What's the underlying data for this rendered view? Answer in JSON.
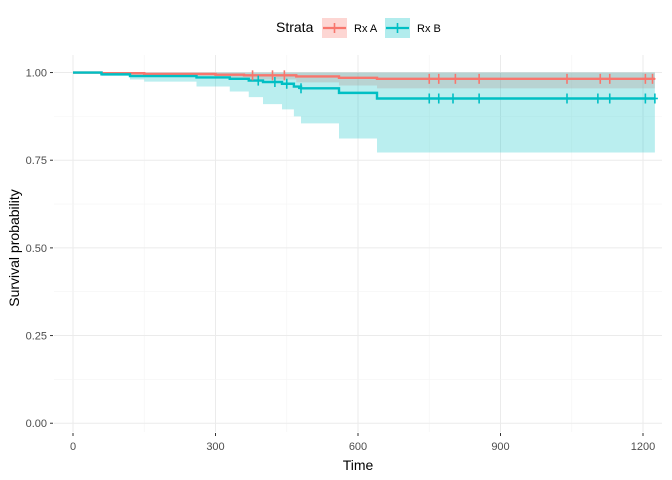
{
  "chart_data": {
    "type": "line",
    "xlabel": "Time",
    "ylabel": "Survival probability",
    "xlim": [
      -40,
      1240
    ],
    "ylim": [
      -0.025,
      1.05
    ],
    "x_ticks": [
      0,
      300,
      600,
      900,
      1200
    ],
    "y_ticks": [
      0.0,
      0.25,
      0.5,
      0.75,
      1.0
    ],
    "x_tick_labels": [
      "0",
      "300",
      "600",
      "900",
      "1200"
    ],
    "y_tick_labels": [
      "0.00",
      "0.25",
      "0.50",
      "0.75",
      "1.00"
    ],
    "grid": true,
    "legend": {
      "title": "Strata",
      "position": "top"
    },
    "series": [
      {
        "name": "Rx A",
        "color": "#F8766D",
        "fill": "#F8766D",
        "steps": [
          [
            0,
            1.0
          ],
          [
            60,
            0.998
          ],
          [
            150,
            0.996
          ],
          [
            300,
            0.994
          ],
          [
            360,
            0.992
          ],
          [
            470,
            0.989
          ],
          [
            560,
            0.985
          ],
          [
            640,
            0.982
          ],
          [
            1225,
            0.982
          ]
        ],
        "lower": [
          [
            0,
            1.0
          ],
          [
            60,
            0.994
          ],
          [
            150,
            0.99
          ],
          [
            300,
            0.985
          ],
          [
            360,
            0.98
          ],
          [
            470,
            0.972
          ],
          [
            560,
            0.963
          ],
          [
            640,
            0.955
          ],
          [
            1225,
            0.955
          ]
        ],
        "upper": [
          [
            0,
            1.0
          ],
          [
            1225,
            1.0
          ]
        ],
        "censored": [
          [
            378,
            0.992
          ],
          [
            420,
            0.992
          ],
          [
            445,
            0.992
          ],
          [
            750,
            0.982
          ],
          [
            770,
            0.982
          ],
          [
            805,
            0.982
          ],
          [
            855,
            0.982
          ],
          [
            1040,
            0.982
          ],
          [
            1110,
            0.982
          ],
          [
            1130,
            0.982
          ],
          [
            1205,
            0.982
          ],
          [
            1220,
            0.982
          ]
        ]
      },
      {
        "name": "Rx B",
        "color": "#00BFC4",
        "fill": "#00BFC4",
        "steps": [
          [
            0,
            1.0
          ],
          [
            60,
            0.995
          ],
          [
            120,
            0.99
          ],
          [
            260,
            0.986
          ],
          [
            330,
            0.982
          ],
          [
            370,
            0.977
          ],
          [
            400,
            0.973
          ],
          [
            440,
            0.968
          ],
          [
            465,
            0.96
          ],
          [
            480,
            0.955
          ],
          [
            560,
            0.942
          ],
          [
            640,
            0.926
          ],
          [
            1225,
            0.926
          ]
        ],
        "lower": [
          [
            0,
            1.0
          ],
          [
            60,
            0.99
          ],
          [
            120,
            0.98
          ],
          [
            150,
            0.974
          ],
          [
            260,
            0.96
          ],
          [
            330,
            0.946
          ],
          [
            370,
            0.93
          ],
          [
            400,
            0.91
          ],
          [
            440,
            0.895
          ],
          [
            465,
            0.875
          ],
          [
            480,
            0.855
          ],
          [
            560,
            0.812
          ],
          [
            640,
            0.772
          ],
          [
            1225,
            0.772
          ]
        ],
        "upper": [
          [
            0,
            1.0
          ],
          [
            1225,
            1.0
          ]
        ],
        "censored": [
          [
            390,
            0.977
          ],
          [
            425,
            0.973
          ],
          [
            450,
            0.968
          ],
          [
            480,
            0.955
          ],
          [
            750,
            0.926
          ],
          [
            770,
            0.926
          ],
          [
            800,
            0.926
          ],
          [
            855,
            0.926
          ],
          [
            1040,
            0.926
          ],
          [
            1105,
            0.926
          ],
          [
            1130,
            0.926
          ],
          [
            1205,
            0.926
          ],
          [
            1225,
            0.926
          ]
        ]
      }
    ]
  }
}
